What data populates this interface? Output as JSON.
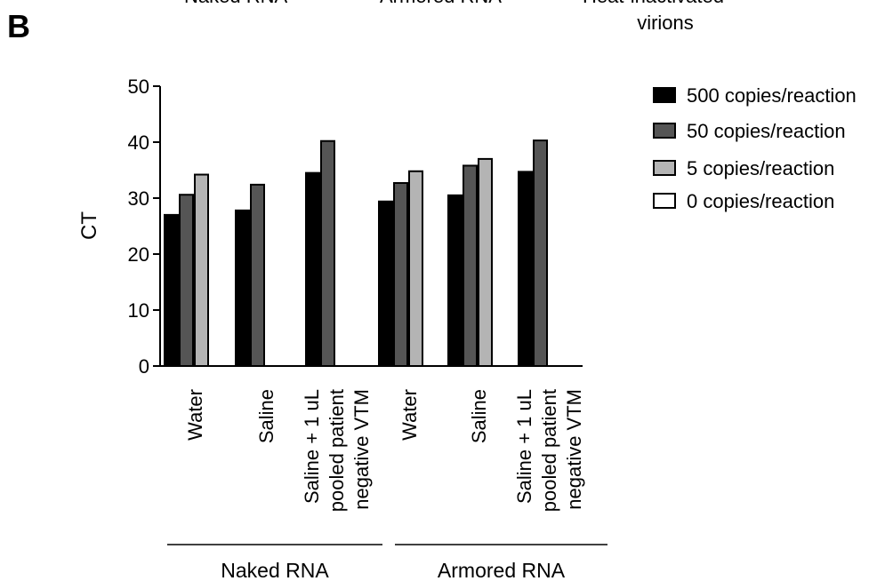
{
  "header": {
    "panel_letter": "B",
    "cropped_labels": [
      "Naked RNA",
      "Armored RNA",
      "Heat-inactivated"
    ],
    "cropped_subline": "virions"
  },
  "chart_data": {
    "type": "bar",
    "ylabel": "CT",
    "xlabel": "",
    "ylim": [
      0,
      50
    ],
    "yticks": [
      0,
      10,
      20,
      30,
      40,
      50
    ],
    "categories": [
      [
        "Water"
      ],
      [
        "Saline"
      ],
      [
        "Saline + 1 uL",
        "pooled patient",
        "negative VTM"
      ],
      [
        "Water"
      ],
      [
        "Saline"
      ],
      [
        "Saline + 1 uL",
        "pooled patient",
        "negative VTM"
      ]
    ],
    "groups": [
      {
        "label": "Naked RNA",
        "categories": [
          0,
          1,
          2
        ]
      },
      {
        "label": "Armored RNA",
        "categories": [
          3,
          4,
          5
        ]
      }
    ],
    "series": [
      {
        "name": "500 copies/reaction",
        "color": "#000000",
        "values": [
          27.0,
          27.8,
          34.5,
          29.4,
          30.5,
          34.7
        ]
      },
      {
        "name": "50 copies/reaction",
        "color": "#555555",
        "values": [
          30.6,
          32.4,
          40.2,
          32.7,
          35.8,
          40.3
        ]
      },
      {
        "name": "5 copies/reaction",
        "color": "#b4b4b4",
        "values": [
          34.2,
          null,
          null,
          34.8,
          37.0,
          null
        ]
      },
      {
        "name": "0 copies/reaction",
        "color": "#ffffff",
        "values": [
          null,
          null,
          null,
          null,
          null,
          null
        ]
      }
    ],
    "legend_position": "top-right",
    "grid": false
  }
}
